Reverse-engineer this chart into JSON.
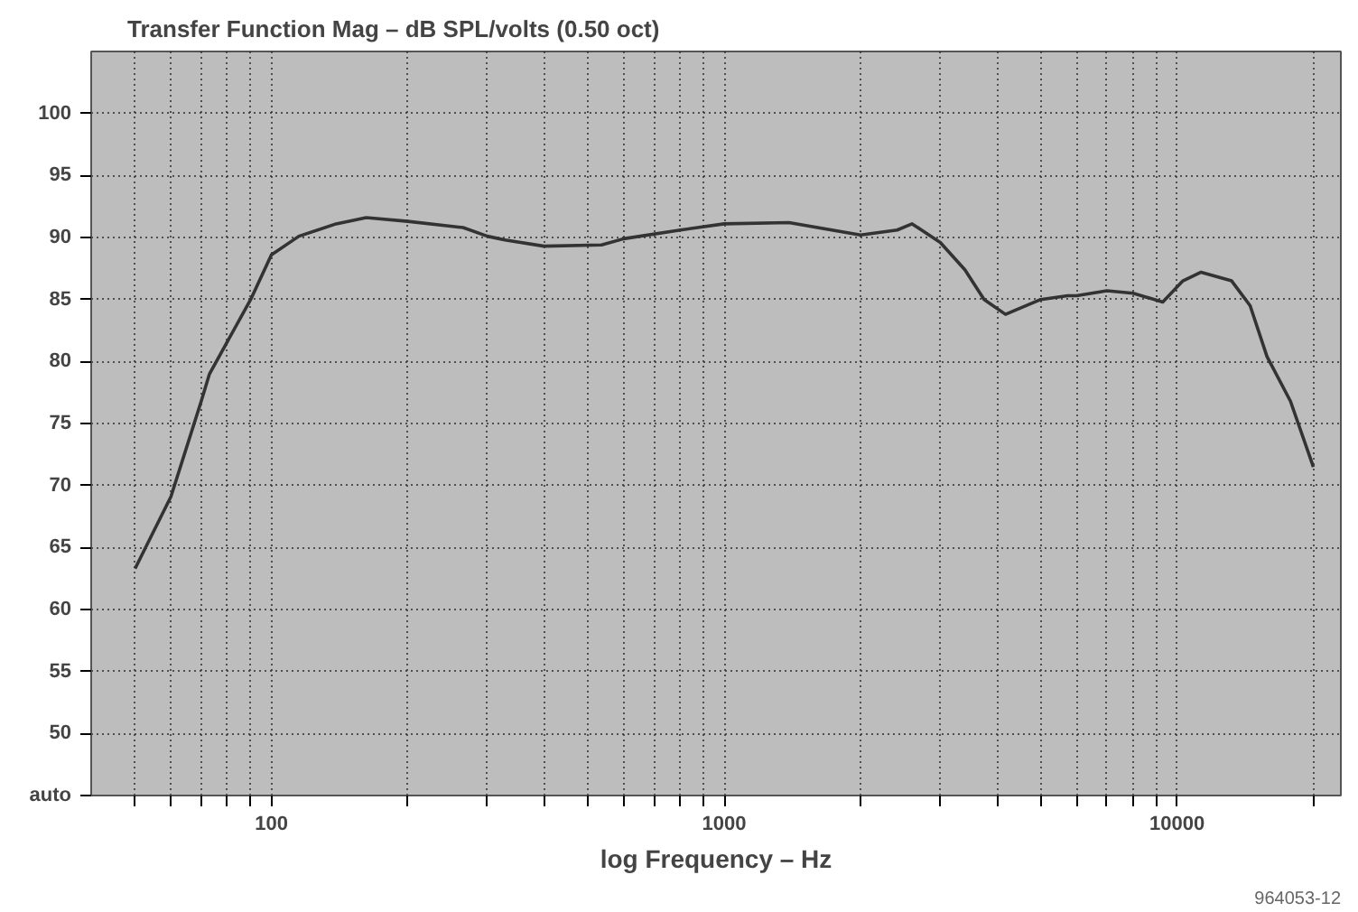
{
  "chart_data": {
    "type": "line",
    "title": "Transfer Function Mag – dB SPL/volts (0.50 oct)",
    "xlabel": "log Frequency – Hz",
    "log": "x",
    "grid": true,
    "marker": "none",
    "line_style": "solid",
    "xlim": [
      40,
      23000
    ],
    "ylim": [
      45,
      105
    ],
    "xticks": [
      {
        "value": 50,
        "label": null
      },
      {
        "value": 60,
        "label": null
      },
      {
        "value": 70,
        "label": null
      },
      {
        "value": 80,
        "label": null
      },
      {
        "value": 90,
        "label": null
      },
      100,
      {
        "value": 200,
        "label": null
      },
      {
        "value": 300,
        "label": null
      },
      {
        "value": 400,
        "label": null
      },
      {
        "value": 500,
        "label": null
      },
      {
        "value": 600,
        "label": null
      },
      {
        "value": 700,
        "label": null
      },
      {
        "value": 800,
        "label": null
      },
      {
        "value": 900,
        "label": null
      },
      1000,
      {
        "value": 2000,
        "label": null
      },
      {
        "value": 3000,
        "label": null
      },
      {
        "value": 4000,
        "label": null
      },
      {
        "value": 5000,
        "label": null
      },
      {
        "value": 6000,
        "label": null
      },
      {
        "value": 7000,
        "label": null
      },
      {
        "value": 8000,
        "label": null
      },
      {
        "value": 9000,
        "label": null
      },
      10000,
      {
        "value": 20000,
        "label": null
      }
    ],
    "yticks": [
      {
        "value": 45,
        "label": "auto"
      },
      50,
      55,
      60,
      65,
      70,
      75,
      80,
      85,
      90,
      95,
      100
    ],
    "x": [
      50,
      60,
      70,
      73,
      90,
      100,
      115,
      139,
      162,
      200,
      265,
      300,
      328,
      400,
      536,
      600,
      800,
      1000,
      1390,
      2000,
      2410,
      2600,
      3000,
      3400,
      3750,
      4180,
      5000,
      5730,
      6000,
      7000,
      8000,
      9300,
      10300,
      11300,
      13200,
      14500,
      15800,
      17800,
      20000
    ],
    "series": [
      {
        "color": "#333333",
        "values": [
          63.3,
          69.1,
          76.8,
          79.0,
          85.0,
          88.6,
          90.1,
          91.1,
          91.6,
          91.3,
          90.8,
          90.1,
          89.8,
          89.3,
          89.4,
          89.9,
          90.6,
          91.1,
          91.2,
          90.2,
          90.6,
          91.1,
          89.6,
          87.4,
          85.0,
          83.8,
          85.0,
          85.3,
          85.3,
          85.7,
          85.5,
          84.8,
          86.5,
          87.2,
          86.5,
          84.5,
          80.4,
          76.8,
          71.5
        ]
      }
    ],
    "annotations": [
      "964053-12"
    ]
  }
}
